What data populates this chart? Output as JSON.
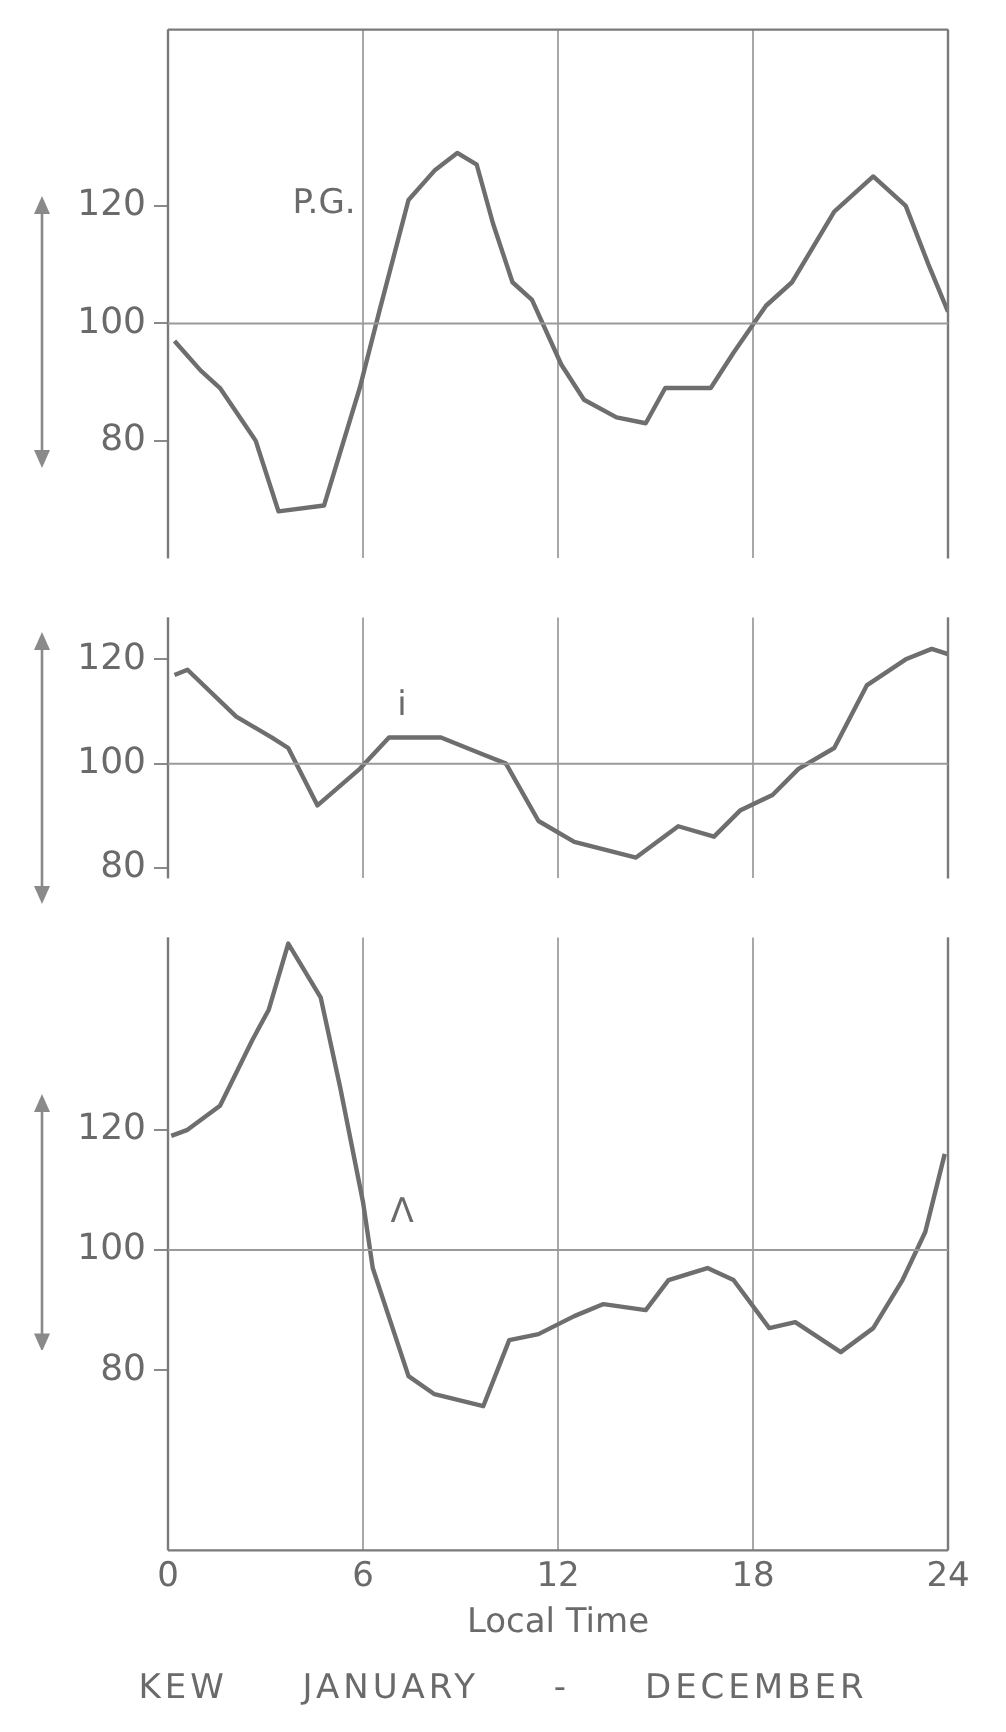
{
  "chart_data": [
    {
      "type": "line",
      "color": "#6e6e6e",
      "x": [
        0.2,
        1.0,
        1.6,
        2.7,
        3.4,
        4.8,
        5.9,
        6.5,
        7.4,
        8.2,
        8.9,
        9.5,
        10.0,
        10.6,
        11.2,
        12.1,
        12.8,
        13.8,
        14.7,
        15.3,
        16.7,
        17.4,
        18.4,
        19.2,
        20.5,
        21.7,
        22.7,
        23.4,
        24.0
      ],
      "values": [
        97,
        92,
        89,
        80,
        68,
        69,
        89,
        102,
        121,
        126,
        129,
        127,
        117,
        107,
        104,
        93,
        87,
        84,
        83,
        89,
        89,
        95,
        103,
        107,
        119,
        125,
        120,
        110,
        102
      ],
      "xlim": [
        0,
        24
      ],
      "xticks": [
        0,
        6,
        12,
        18,
        24
      ],
      "ylim": [
        60,
        150
      ],
      "yticks": [
        80,
        100,
        120
      ],
      "tick_labels": "y",
      "grid": "x",
      "ref_lines": [
        {
          "axis": "y",
          "value": 100
        }
      ],
      "annotations": [
        "P.G."
      ]
    },
    {
      "type": "line",
      "color": "#6e6e6e",
      "x": [
        0.2,
        0.6,
        2.1,
        3.2,
        3.7,
        4.6,
        5.9,
        6.8,
        8.4,
        9.6,
        10.4,
        11.4,
        12.5,
        14.4,
        15.7,
        16.8,
        17.6,
        18.6,
        19.4,
        20.5,
        21.5,
        22.7,
        23.5,
        24.0
      ],
      "values": [
        117,
        118,
        109,
        105,
        103,
        92,
        99,
        105,
        105,
        102,
        100,
        89,
        85,
        82,
        88,
        86,
        91,
        94,
        99,
        103,
        115,
        120,
        122,
        121
      ],
      "xlim": [
        0,
        24
      ],
      "xticks": [
        0,
        6,
        12,
        18,
        24
      ],
      "ylim": [
        78,
        128
      ],
      "yticks": [
        80,
        100,
        120
      ],
      "tick_labels": "y",
      "grid": "x",
      "ref_lines": [
        {
          "axis": "y",
          "value": 100
        }
      ],
      "annotations": [
        "i"
      ]
    },
    {
      "type": "line",
      "color": "#6e6e6e",
      "x": [
        0.1,
        0.6,
        1.6,
        2.6,
        3.1,
        3.7,
        4.7,
        5.3,
        6.0,
        6.3,
        7.4,
        8.2,
        9.7,
        10.5,
        11.4,
        12.5,
        13.4,
        14.7,
        15.4,
        16.6,
        17.4,
        18.5,
        19.3,
        20.7,
        21.7,
        22.6,
        23.3,
        23.9
      ],
      "values": [
        119,
        120,
        124,
        135,
        140,
        151,
        142,
        127,
        108,
        97,
        79,
        76,
        74,
        85,
        86,
        89,
        91,
        90,
        95,
        97,
        95,
        87,
        88,
        83,
        87,
        95,
        103,
        116
      ],
      "xlim": [
        0,
        24
      ],
      "xticks": [
        0,
        6,
        12,
        18,
        24
      ],
      "ylim": [
        50,
        152
      ],
      "yticks": [
        80,
        100,
        120
      ],
      "grid": "x",
      "xlabel": "Local Time",
      "ref_lines": [
        {
          "axis": "y",
          "value": 100
        }
      ],
      "annotations": [
        "Λ",
        "KEW JANUARY - DECEMBER"
      ]
    }
  ]
}
